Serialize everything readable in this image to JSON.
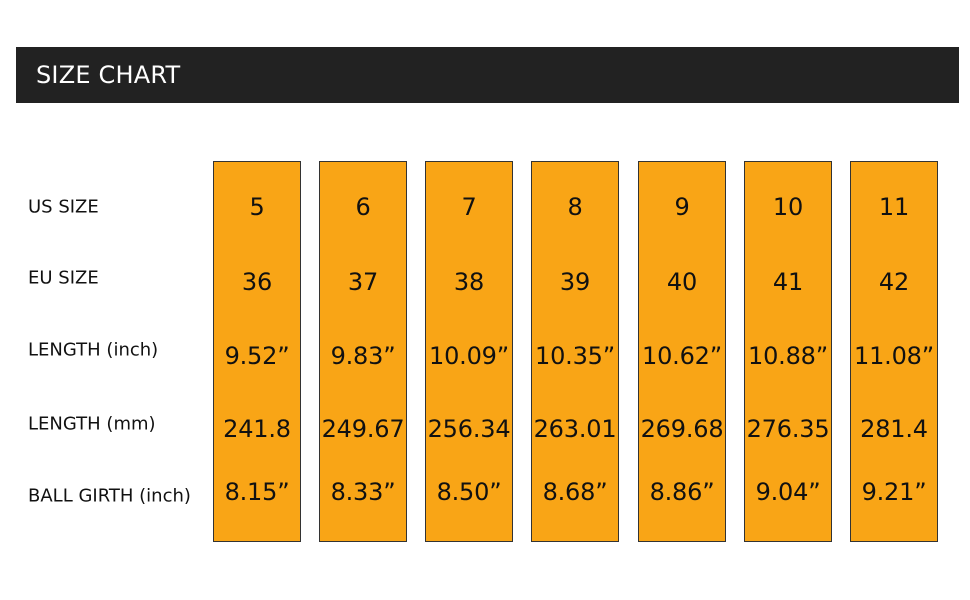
{
  "header": {
    "title": "SIZE CHART"
  },
  "colors": {
    "header_bg": "#222222",
    "column_fill": "#F9A516",
    "text": "#111111"
  },
  "rows": [
    {
      "label": "US SIZE",
      "values": [
        "5",
        "6",
        "7",
        "8",
        "9",
        "10",
        "11"
      ]
    },
    {
      "label": "EU SIZE",
      "values": [
        "36",
        "37",
        "38",
        "39",
        "40",
        "41",
        "42"
      ]
    },
    {
      "label": "LENGTH (inch)",
      "values": [
        "9.52”",
        "9.83”",
        "10.09”",
        "10.35”",
        "10.62”",
        "10.88”",
        "11.08”"
      ]
    },
    {
      "label": "LENGTH (mm)",
      "values": [
        "241.8",
        "249.67",
        "256.34",
        "263.01",
        "269.68",
        "276.35",
        "281.4"
      ]
    },
    {
      "label": "BALL GIRTH (inch)",
      "values": [
        "8.15”",
        "8.33”",
        "8.50”",
        "8.68”",
        "8.86”",
        "9.04”",
        "9.21”"
      ]
    }
  ]
}
